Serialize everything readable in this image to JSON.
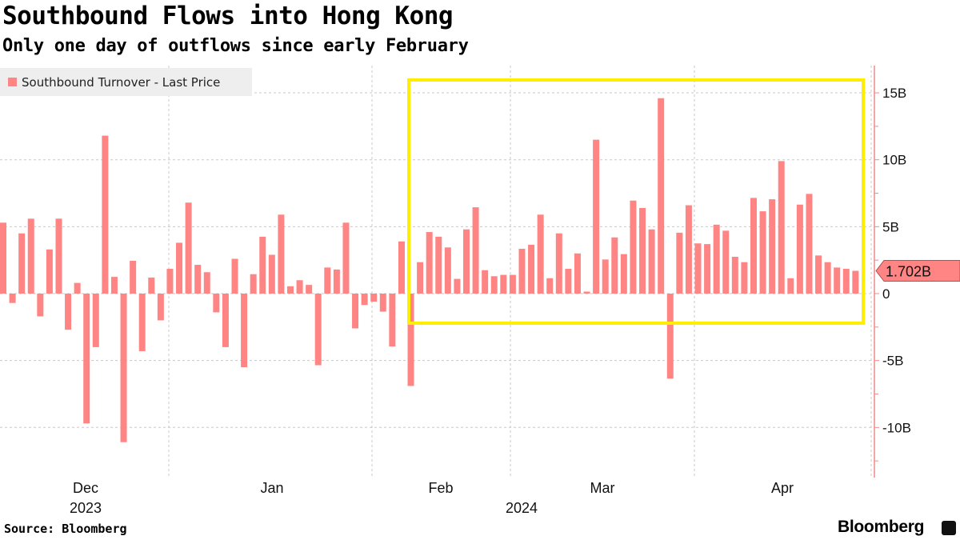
{
  "chart_data": {
    "type": "bar",
    "title": "Southbound Flows into Hong Kong",
    "subtitle": "Only one day of outflows since early February",
    "legend": [
      "Southbound Turnover - Last Price"
    ],
    "legend_position": "top-left",
    "ylabel": "",
    "xlabel": "",
    "ylim": [
      -13.6,
      17
    ],
    "yticks": [
      15,
      10,
      5,
      0,
      -5,
      -10
    ],
    "ytick_labels": [
      "15B",
      "10B",
      "5B",
      "0",
      "-5B",
      "-10B"
    ],
    "x_month_labels": [
      "Dec",
      "Jan",
      "Feb",
      "Mar",
      "Apr"
    ],
    "x_year_labels": [
      "2023",
      "2024"
    ],
    "last_value_label": "1.702B",
    "grid": true,
    "annotation": "yellow box highlighting February onward",
    "units": "B (HKD billions)",
    "values": [
      5.3,
      -0.7,
      4.5,
      5.6,
      -1.7,
      3.3,
      5.6,
      -2.7,
      0.8,
      -9.7,
      -4.0,
      11.8,
      1.25,
      -11.1,
      2.45,
      -4.3,
      1.2,
      -2.0,
      1.85,
      3.8,
      6.8,
      2.15,
      1.6,
      -1.4,
      -4.0,
      2.6,
      -5.5,
      1.45,
      4.25,
      2.9,
      5.9,
      0.55,
      1.0,
      0.65,
      -5.35,
      1.95,
      1.8,
      5.3,
      -2.6,
      -0.85,
      -0.6,
      -1.35,
      -3.95,
      3.9,
      -6.9,
      2.35,
      4.6,
      4.25,
      3.45,
      1.1,
      4.8,
      6.45,
      1.75,
      1.3,
      1.4,
      1.4,
      3.35,
      3.65,
      5.9,
      1.15,
      4.5,
      1.85,
      3.0,
      0.15,
      11.5,
      2.55,
      4.2,
      2.95,
      6.95,
      6.4,
      4.8,
      14.6,
      -6.35,
      4.55,
      6.6,
      3.75,
      3.7,
      5.15,
      4.7,
      2.75,
      2.35,
      7.15,
      6.15,
      7.05,
      9.9,
      1.15,
      6.65,
      7.45,
      2.85,
      2.35,
      1.95,
      1.85,
      1.702
    ],
    "colors": {
      "bar": "#ff8585",
      "highlight": "#ffee00",
      "axis": "#f08a8a"
    }
  },
  "footer": {
    "source": "Source: Bloomberg",
    "brand": "Bloomberg"
  }
}
